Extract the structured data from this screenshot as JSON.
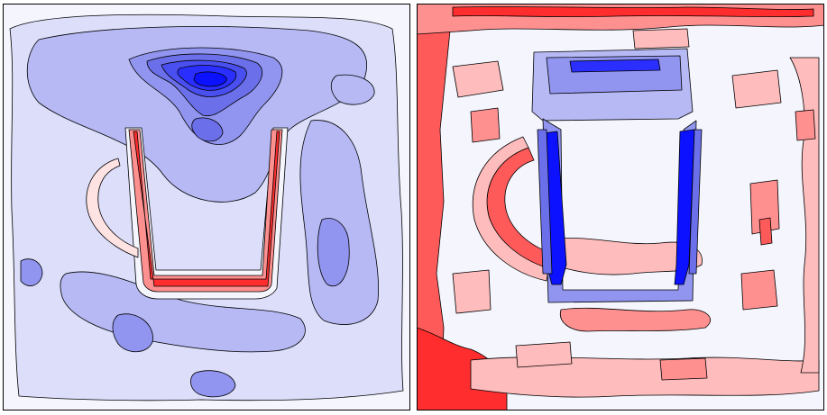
{
  "figure": {
    "title": "",
    "caption": ""
  },
  "colors": {
    "neutral": "#f4f5fd",
    "blue_levels": [
      "#dcdefa",
      "#b6b9f4",
      "#9195ef",
      "#6b70ea",
      "#4a4ff0",
      "#2a2fff",
      "#0c12ff"
    ],
    "red_levels": [
      "#ffe2e2",
      "#ffbcbc",
      "#ff9090",
      "#ff5a5a",
      "#ff2d2d"
    ],
    "contour_line": "#000000",
    "frame": "#000000"
  },
  "chart_data": [
    {
      "type": "heatmap",
      "style": "filled-contour",
      "title": "",
      "xlabel": "",
      "ylabel": "",
      "colormap": "bwr",
      "axes_visible": false,
      "regions": [
        {
          "name": "background",
          "level": 0
        },
        {
          "name": "outer-field",
          "level": -1
        },
        {
          "name": "upper-lobe",
          "level": -2
        },
        {
          "name": "right-band",
          "level": -2
        },
        {
          "name": "lower-band",
          "level": -2
        },
        {
          "name": "core-a",
          "level": -3
        },
        {
          "name": "core-b",
          "level": -4
        },
        {
          "name": "core-c",
          "level": -5
        },
        {
          "name": "core-d",
          "level": -6
        },
        {
          "name": "core-e",
          "level": -7
        },
        {
          "name": "u-halo",
          "level": 1
        },
        {
          "name": "u-wall",
          "level": 3
        },
        {
          "name": "u-wall-core",
          "level": 5
        },
        {
          "name": "arc-left",
          "level": 1
        }
      ]
    },
    {
      "type": "heatmap",
      "style": "filled-contour",
      "title": "",
      "xlabel": "",
      "ylabel": "",
      "colormap": "bwr",
      "axes_visible": false,
      "regions": [
        {
          "name": "background",
          "level": 0
        },
        {
          "name": "left-border",
          "level": 4
        },
        {
          "name": "top-border",
          "level": 3
        },
        {
          "name": "bottom-left-corner",
          "level": 5
        },
        {
          "name": "arc-left",
          "level": 4
        },
        {
          "name": "inner-red-band",
          "level": 2
        },
        {
          "name": "scattered-patches",
          "level": 1
        },
        {
          "name": "top-box",
          "level": -2
        },
        {
          "name": "top-box-core",
          "level": -6
        },
        {
          "name": "u-left-arm",
          "level": -7
        },
        {
          "name": "u-right-arm",
          "level": -7
        },
        {
          "name": "u-base",
          "level": -3
        }
      ]
    }
  ]
}
